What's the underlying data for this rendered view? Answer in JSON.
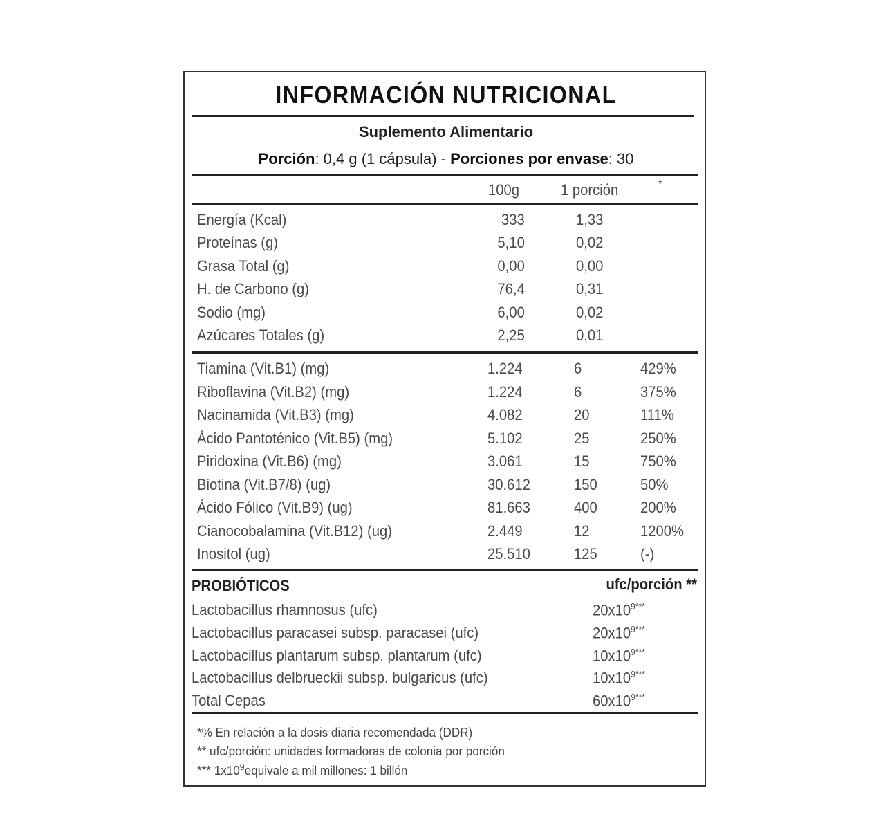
{
  "title": "INFORMACIÓN NUTRICIONAL",
  "subtitle": "Suplemento Alimentario",
  "portion": {
    "label": "Porción",
    "value": ": 0,4 g (1 cápsula) - ",
    "servings_label": "Porciones por envase",
    "servings_value": ": 30"
  },
  "columns": {
    "per100": "100g",
    "per_portion": "1 porción",
    "pct": "*"
  },
  "macros": [
    {
      "name": "Energía (Kcal)",
      "per100": "333",
      "portion": "1,33"
    },
    {
      "name": "Proteínas (g)",
      "per100": "5,10",
      "portion": "0,02"
    },
    {
      "name": "Grasa Total (g)",
      "per100": "0,00",
      "portion": "0,00"
    },
    {
      "name": "H. de Carbono (g)",
      "per100": "76,4",
      "portion": "0,31"
    },
    {
      "name": "Sodio (mg)",
      "per100": "6,00",
      "portion": "0,02"
    },
    {
      "name": "Azúcares Totales (g)",
      "per100": "2,25",
      "portion": "0,01"
    }
  ],
  "vitamins": [
    {
      "name": "Tiamina (Vit.B1) (mg)",
      "per100": "1.224",
      "portion": "6",
      "pct": "429%"
    },
    {
      "name": "Riboflavina (Vit.B2) (mg)",
      "per100": "1.224",
      "portion": "6",
      "pct": "375%"
    },
    {
      "name": "Nacinamida (Vit.B3) (mg)",
      "per100": "4.082",
      "portion": "20",
      "pct": "111%"
    },
    {
      "name": "Ácido Pantoténico (Vit.B5) (mg)",
      "per100": "5.102",
      "portion": "25",
      "pct": "250%"
    },
    {
      "name": "Piridoxina (Vit.B6) (mg)",
      "per100": "3.061",
      "portion": "15",
      "pct": "750%"
    },
    {
      "name": "Biotina (Vit.B7/8) (ug)",
      "per100": "30.612",
      "portion": "150",
      "pct": "50%"
    },
    {
      "name": "Ácido Fólico (Vit.B9) (ug)",
      "per100": "81.663",
      "portion": "400",
      "pct": "200%"
    },
    {
      "name": "Cianocobalamina (Vit.B12) (ug)",
      "per100": "2.449",
      "portion": "12",
      "pct": "1200%"
    },
    {
      "name": "Inositol (ug)",
      "per100": "25.510",
      "portion": "125",
      "pct": "(-)"
    }
  ],
  "probiotics": {
    "heading": "PROBIÓTICOS",
    "unit_header": "ufc/porción **",
    "items": [
      {
        "name": "Lactobacillus rhamnosus (ufc)",
        "base": "20x10",
        "exp": "9",
        "mark": "***"
      },
      {
        "name": "Lactobacillus paracasei subsp. paracasei (ufc)",
        "base": "20x10",
        "exp": "9",
        "mark": "***"
      },
      {
        "name": "Lactobacillus plantarum subsp. plantarum (ufc)",
        "base": "10x10",
        "exp": "9",
        "mark": "***"
      },
      {
        "name": "Lactobacillus delbrueckii subsp. bulgaricus (ufc)",
        "base": "10x10",
        "exp": "9",
        "mark": "***"
      },
      {
        "name": "Total Cepas",
        "base": "60x10",
        "exp": "9",
        "mark": "***"
      }
    ]
  },
  "footnotes": {
    "f1": "*% En relación a la dosis diaria recomendada (DDR)",
    "f2": "** ufc/porción: unidades formadoras de colonia por porción",
    "f3_pre": "*** 1x10",
    "f3_exp": "9",
    "f3_post": "equivale a mil millones: 1 billón"
  }
}
